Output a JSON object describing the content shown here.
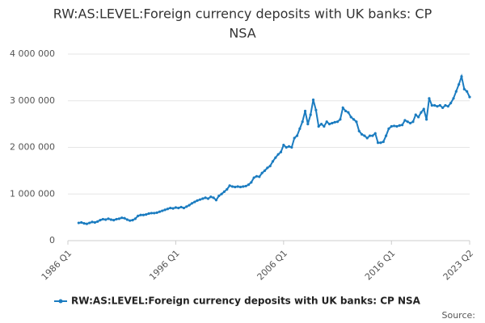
{
  "chart_data": {
    "type": "line",
    "title": "RW:AS:LEVEL:Foreign currency deposits with UK banks: CP NSA",
    "source": "Source:",
    "x": [
      1987,
      1987.25,
      1987.5,
      1987.75,
      1988,
      1988.25,
      1988.5,
      1988.75,
      1989,
      1989.25,
      1989.5,
      1989.75,
      1990,
      1990.25,
      1990.5,
      1990.75,
      1991,
      1991.25,
      1991.5,
      1991.75,
      1992,
      1992.25,
      1992.5,
      1992.75,
      1993,
      1993.25,
      1993.5,
      1993.75,
      1994,
      1994.25,
      1994.5,
      1994.75,
      1995,
      1995.25,
      1995.5,
      1995.75,
      1996,
      1996.25,
      1996.5,
      1996.75,
      1997,
      1997.25,
      1997.5,
      1997.75,
      1998,
      1998.25,
      1998.5,
      1998.75,
      1999,
      1999.25,
      1999.5,
      1999.75,
      2000,
      2000.25,
      2000.5,
      2000.75,
      2001,
      2001.25,
      2001.5,
      2001.75,
      2002,
      2002.25,
      2002.5,
      2002.75,
      2003,
      2003.25,
      2003.5,
      2003.75,
      2004,
      2004.25,
      2004.5,
      2004.75,
      2005,
      2005.25,
      2005.5,
      2005.75,
      2006,
      2006.25,
      2006.5,
      2006.75,
      2007,
      2007.25,
      2007.5,
      2007.75,
      2008,
      2008.25,
      2008.5,
      2008.75,
      2009,
      2009.25,
      2009.5,
      2009.75,
      2010,
      2010.25,
      2010.5,
      2010.75,
      2011,
      2011.25,
      2011.5,
      2011.75,
      2012,
      2012.25,
      2012.5,
      2012.75,
      2013,
      2013.25,
      2013.5,
      2013.75,
      2014,
      2014.25,
      2014.5,
      2014.75,
      2015,
      2015.25,
      2015.5,
      2015.75,
      2016,
      2016.25,
      2016.5,
      2016.75,
      2017,
      2017.25,
      2017.5,
      2017.75,
      2018,
      2018.25,
      2018.5,
      2018.75,
      2019,
      2019.25,
      2019.5,
      2019.75,
      2020,
      2020.25,
      2020.5,
      2020.75,
      2021,
      2021.25,
      2021.5,
      2021.75,
      2022,
      2022.25,
      2022.5,
      2022.75,
      2023,
      2023.25
    ],
    "series": [
      {
        "name": "RW:AS:LEVEL:Foreign currency deposits with UK banks: CP NSA",
        "color": "#1b7cc0",
        "values": [
          380000,
          390000,
          370000,
          360000,
          380000,
          400000,
          390000,
          410000,
          440000,
          460000,
          450000,
          470000,
          450000,
          440000,
          460000,
          470000,
          490000,
          480000,
          450000,
          430000,
          440000,
          470000,
          530000,
          550000,
          550000,
          560000,
          580000,
          590000,
          590000,
          600000,
          620000,
          640000,
          660000,
          680000,
          700000,
          690000,
          710000,
          700000,
          720000,
          700000,
          730000,
          760000,
          800000,
          830000,
          860000,
          880000,
          900000,
          920000,
          900000,
          940000,
          920000,
          870000,
          960000,
          1000000,
          1050000,
          1100000,
          1180000,
          1160000,
          1150000,
          1160000,
          1150000,
          1160000,
          1170000,
          1200000,
          1250000,
          1350000,
          1380000,
          1370000,
          1450000,
          1500000,
          1560000,
          1600000,
          1700000,
          1780000,
          1850000,
          1900000,
          2050000,
          2000000,
          2020000,
          2000000,
          2200000,
          2250000,
          2400000,
          2550000,
          2780000,
          2500000,
          2700000,
          3020000,
          2800000,
          2450000,
          2500000,
          2450000,
          2550000,
          2500000,
          2520000,
          2540000,
          2550000,
          2600000,
          2850000,
          2780000,
          2750000,
          2650000,
          2600000,
          2550000,
          2350000,
          2280000,
          2250000,
          2200000,
          2250000,
          2250000,
          2300000,
          2100000,
          2100000,
          2120000,
          2250000,
          2400000,
          2450000,
          2460000,
          2450000,
          2470000,
          2480000,
          2580000,
          2550000,
          2520000,
          2550000,
          2700000,
          2650000,
          2750000,
          2820000,
          2600000,
          3050000,
          2900000,
          2900000,
          2880000,
          2900000,
          2850000,
          2900000,
          2880000,
          2950000,
          3050000,
          3200000,
          3350000,
          3520000,
          3250000,
          3200000,
          3080000
        ]
      }
    ],
    "xlim": [
      1986,
      2023.25
    ],
    "xticks": [
      {
        "value": 1986,
        "label": "1986 Q1"
      },
      {
        "value": 1996,
        "label": "1996 Q1"
      },
      {
        "value": 2006,
        "label": "2006 Q1"
      },
      {
        "value": 2016,
        "label": "2016 Q1"
      },
      {
        "value": 2023.25,
        "label": "2023 Q2"
      }
    ],
    "ylim": [
      0,
      4000000
    ],
    "yticks": [
      0,
      {
        "value": 1000000,
        "label": "1 000 000"
      },
      {
        "value": 2000000,
        "label": "2 000 000"
      },
      {
        "value": 3000000,
        "label": "3 000 000"
      },
      {
        "value": 4000000,
        "label": "4 000 000"
      }
    ],
    "grid": true
  }
}
